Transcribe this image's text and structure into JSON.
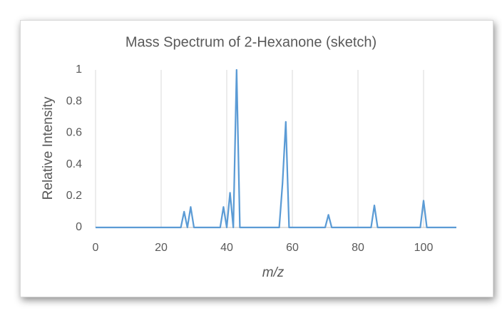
{
  "chart_data": {
    "type": "line",
    "title": "Mass Spectrum of 2-Hexanone (sketch)",
    "x_label": "m/z",
    "y_label": "Relative Intensity",
    "x": [
      0,
      26,
      27,
      28,
      29,
      30,
      38,
      39,
      40,
      41,
      42,
      43,
      44,
      56,
      57,
      58,
      59,
      70,
      71,
      72,
      84,
      85,
      86,
      99,
      100,
      101,
      110
    ],
    "series": [
      {
        "name": "Relative Intensity",
        "color": "#5b9bd5",
        "values": [
          0,
          0,
          0.1,
          0,
          0.13,
          0,
          0,
          0.13,
          0,
          0.22,
          0,
          1,
          0,
          0,
          0.28,
          0.67,
          0,
          0,
          0.08,
          0,
          0,
          0.14,
          0,
          0,
          0.17,
          0,
          0
        ]
      }
    ],
    "xlim": [
      0,
      110
    ],
    "ylim": [
      0,
      1
    ],
    "xticks": [
      0,
      20,
      40,
      60,
      80,
      100
    ],
    "yticks": [
      0,
      0.2,
      0.4,
      0.6,
      0.8,
      1
    ],
    "grid": "x"
  }
}
